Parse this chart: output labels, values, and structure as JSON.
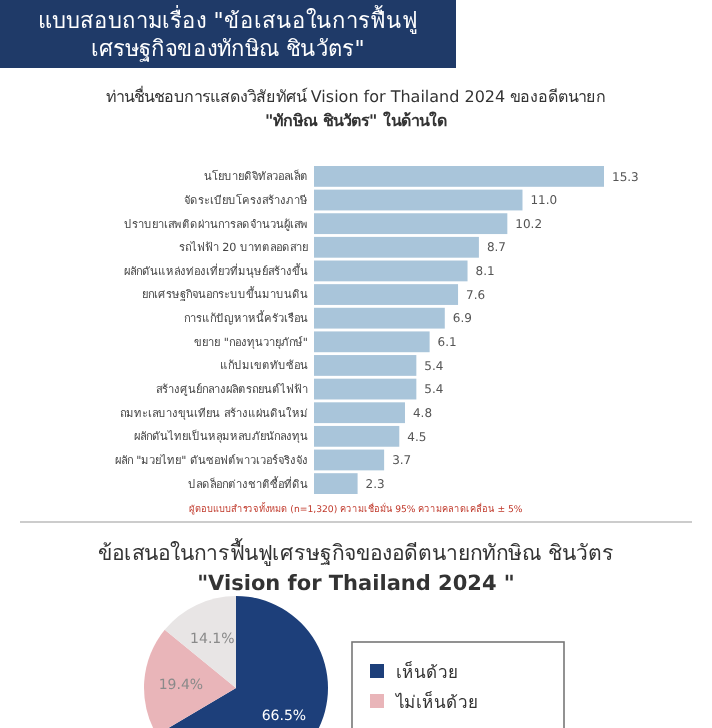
{
  "chart_data": [
    {
      "type": "bar",
      "orientation": "horizontal",
      "title": "ท่านชื่นชอบการแสดงวิสัยทัศน์ Vision for Thailand 2024 ของอดีตนายก\n\"ทักษิณ ชินวัตร\" ในด้านใด",
      "subtitle": "แบบสอบถามเรื่อง \"ข้อเสนอในการฟื้นฟู\nเศรษฐกิจของทักษิณ ชินวัตร\"",
      "categories": [
        "นโยบายดิจิทัลวอลเล็ต",
        "จัดระเบียบโครงสร้างภาษี",
        "ปราบยาเสพติดผ่านการลดจำนวนผู้เสพ",
        "รถไฟฟ้า 20 บาทตลอดสาย",
        "ผลักดันแหล่งท่องเที่ยวที่มนุษย์สร้างขึ้น",
        "ยกเศรษฐกิจนอกระบบขึ้นมาบนดิน",
        "การแก้ปัญหาหนี้ครัวเรือน",
        "ขยาย \"กองทุนวายุภักษ์\"",
        "แก้ปมเขตทับซ้อน",
        "สร้างศูนย์กลางผลิตรถยนต์ไฟฟ้า",
        "ถมทะเลบางขุนเทียน สร้างแผ่นดินใหม่",
        "ผลักดันไทยเป็นหลุมหลบภัยนักลงทุน",
        "ผลัก \"มวยไทย\" ดันซอฟต์พาวเวอร์จริงจัง",
        "ปลดล็อกต่างชาติซื้อที่ดิน"
      ],
      "values": [
        15.3,
        11.0,
        10.2,
        8.7,
        8.1,
        7.6,
        6.9,
        6.1,
        5.4,
        5.4,
        4.8,
        4.5,
        3.7,
        2.3
      ],
      "value_labels": [
        "15.3",
        "11.0",
        "10.2",
        "8.7",
        "8.1",
        "7.6",
        "6.9",
        "6.1",
        "5.4",
        "5.4",
        "4.8",
        "4.5",
        "3.7",
        "2.3"
      ],
      "color": "#a9c5da",
      "annotations": [
        "ผู้ตอบแบบสำรวจทั้งหมด (n=1,320) ความเชื่อมั่น 95% ความคลาดเคลื่อน ± 5%"
      ]
    },
    {
      "type": "pie",
      "title": "ข้อเสนอในการฟื้นฟูเศรษฐกิจของอดีตนายกทักษิณ ชินวัตร\n\"Vision for Thailand 2024 \"",
      "categories": [
        "เห็นด้วย",
        "ไม่เห็นด้วย",
        null
      ],
      "values": [
        66.5,
        19.4,
        14.1
      ],
      "value_labels": [
        "66.5%",
        "19.4%",
        "14.1%"
      ],
      "colors": [
        "#1d3f7a",
        "#e9b5b9",
        "#e8e5e5"
      ],
      "legend": "right"
    }
  ]
}
